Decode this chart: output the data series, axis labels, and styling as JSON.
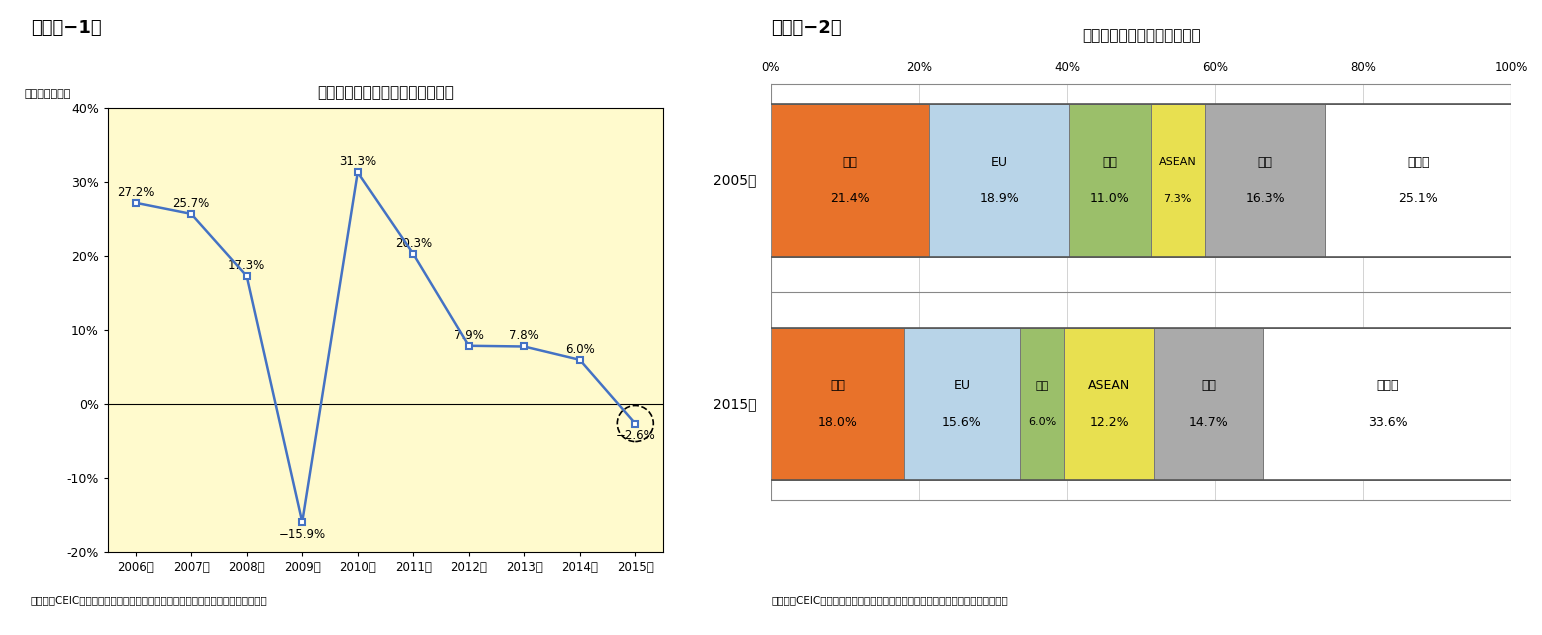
{
  "fig1": {
    "title": "輸出金額（米ドルベース）の推移",
    "ylabel": "（前年同期比）",
    "years": [
      "2006年",
      "2007年",
      "2008年",
      "2009年",
      "2010年",
      "2011年",
      "2012年",
      "2013年",
      "2014年",
      "2015年"
    ],
    "values": [
      27.2,
      25.7,
      17.3,
      -15.9,
      31.3,
      20.3,
      7.9,
      7.8,
      6.0,
      -2.6
    ],
    "ylim": [
      -20,
      40
    ],
    "yticks": [
      -20,
      -10,
      0,
      10,
      20,
      30,
      40
    ],
    "ytick_labels": [
      "-20%",
      "-10%",
      "0%",
      "10%",
      "20%",
      "30%",
      "40%"
    ],
    "bg_color": "#FFFACD",
    "line_color": "#4472C4",
    "source": "（資料）CEIC（出所は中国税関総署）のデータを元にニッセイ基礎研究所で作成",
    "fig1_label": "（図表−1）"
  },
  "fig2": {
    "title": "中国の輸出先別シェアの変化",
    "source": "（資料）CEIC（出所は中国税関総署）のデータを元にニッセイ基礎研究所で作成",
    "categories": [
      "米国",
      "EU",
      "日本",
      "ASEAN",
      "香港",
      "その他"
    ],
    "values_2005": [
      21.4,
      18.9,
      11.0,
      7.3,
      16.3,
      25.1
    ],
    "values_2015": [
      18.0,
      15.6,
      6.0,
      12.2,
      14.7,
      33.6
    ],
    "colors": [
      "#E8722A",
      "#B8D4E8",
      "#9BBF6A",
      "#E8E050",
      "#AAAAAA",
      "#FFFFFF"
    ],
    "bar_edge_color": "#666666",
    "fig2_label": "（図表−2）",
    "xticks": [
      0,
      20,
      40,
      60,
      80,
      100
    ],
    "xlabels": [
      "0%",
      "20%",
      "40%",
      "60%",
      "80%",
      "100%"
    ]
  }
}
